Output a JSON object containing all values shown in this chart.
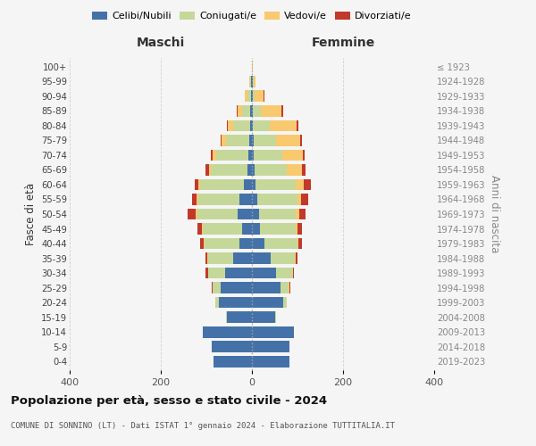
{
  "age_groups": [
    "0-4",
    "5-9",
    "10-14",
    "15-19",
    "20-24",
    "25-29",
    "30-34",
    "35-39",
    "40-44",
    "45-49",
    "50-54",
    "55-59",
    "60-64",
    "65-69",
    "70-74",
    "75-79",
    "80-84",
    "85-89",
    "90-94",
    "95-99",
    "100+"
  ],
  "birth_years": [
    "2019-2023",
    "2014-2018",
    "2009-2013",
    "2004-2008",
    "1999-2003",
    "1994-1998",
    "1989-1993",
    "1984-1988",
    "1979-1983",
    "1974-1978",
    "1969-1973",
    "1964-1968",
    "1959-1963",
    "1954-1958",
    "1949-1953",
    "1944-1948",
    "1939-1943",
    "1934-1938",
    "1929-1933",
    "1924-1928",
    "≤ 1923"
  ],
  "maschi": {
    "celibi": [
      85,
      88,
      108,
      55,
      72,
      68,
      58,
      42,
      28,
      22,
      32,
      28,
      18,
      9,
      7,
      5,
      4,
      3,
      2,
      1,
      0
    ],
    "coniugati": [
      0,
      0,
      0,
      2,
      8,
      18,
      38,
      55,
      75,
      85,
      88,
      90,
      95,
      82,
      72,
      52,
      38,
      18,
      8,
      2,
      0
    ],
    "vedovi": [
      0,
      0,
      0,
      0,
      0,
      1,
      1,
      1,
      2,
      2,
      4,
      4,
      4,
      4,
      7,
      9,
      10,
      10,
      5,
      2,
      0
    ],
    "divorziati": [
      0,
      0,
      0,
      0,
      0,
      2,
      4,
      4,
      8,
      10,
      18,
      10,
      8,
      6,
      4,
      3,
      2,
      2,
      0,
      0,
      0
    ]
  },
  "femmine": {
    "nubili": [
      82,
      83,
      92,
      50,
      68,
      63,
      52,
      42,
      28,
      18,
      15,
      12,
      8,
      5,
      4,
      3,
      2,
      2,
      1,
      1,
      0
    ],
    "coniugate": [
      0,
      0,
      0,
      2,
      8,
      18,
      38,
      52,
      72,
      78,
      82,
      88,
      88,
      72,
      62,
      50,
      38,
      18,
      5,
      2,
      0
    ],
    "vedove": [
      0,
      0,
      0,
      0,
      0,
      1,
      1,
      2,
      2,
      4,
      6,
      8,
      18,
      32,
      45,
      52,
      58,
      45,
      20,
      5,
      2
    ],
    "divorziate": [
      0,
      0,
      0,
      0,
      0,
      2,
      2,
      4,
      8,
      10,
      14,
      15,
      15,
      8,
      5,
      5,
      4,
      4,
      2,
      0,
      0
    ]
  },
  "colors": {
    "celibi": "#4472a8",
    "coniugati": "#c5d89a",
    "vedovi": "#f8c96e",
    "divorziati": "#c0392b"
  },
  "xlim": 400,
  "title": "Popolazione per età, sesso e stato civile - 2024",
  "subtitle": "COMUNE DI SONNINO (LT) - Dati ISTAT 1° gennaio 2024 - Elaborazione TUTTITALIA.IT",
  "xlabel_left": "Maschi",
  "xlabel_right": "Femmine",
  "ylabel_left": "Fasce di età",
  "ylabel_right": "Anni di nascita",
  "bg_color": "#f5f5f5",
  "grid_color": "#cccccc"
}
